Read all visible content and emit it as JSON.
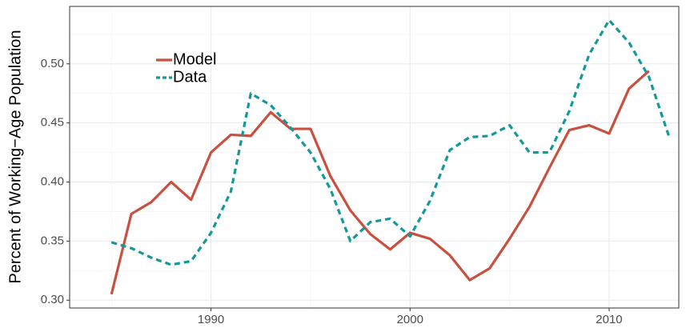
{
  "chart_data": {
    "type": "line",
    "y_label": "Percent of Working−Age Population",
    "x": [
      1985,
      1986,
      1987,
      1988,
      1989,
      1990,
      1991,
      1992,
      1993,
      1994,
      1995,
      1996,
      1997,
      1998,
      1999,
      2000,
      2001,
      2002,
      2003,
      2004,
      2005,
      2006,
      2007,
      2008,
      2009,
      2010,
      2011,
      2012,
      2013
    ],
    "series": [
      {
        "name": "Model",
        "color": "#c9503f",
        "dash": false,
        "values": [
          0.305,
          0.373,
          0.383,
          0.4,
          0.385,
          0.425,
          0.44,
          0.439,
          0.459,
          0.445,
          0.445,
          0.405,
          0.376,
          0.356,
          0.343,
          0.357,
          0.352,
          0.338,
          0.317,
          0.327,
          0.352,
          0.379,
          0.412,
          0.444,
          0.448,
          0.441,
          0.479,
          0.494,
          null
        ]
      },
      {
        "name": "Data",
        "color": "#13999a",
        "dash": true,
        "values": [
          0.349,
          0.344,
          0.336,
          0.33,
          0.333,
          0.357,
          0.392,
          0.475,
          0.465,
          0.446,
          0.425,
          0.394,
          0.35,
          0.366,
          0.369,
          0.354,
          0.384,
          0.427,
          0.438,
          0.439,
          0.448,
          0.425,
          0.425,
          0.46,
          0.508,
          0.537,
          0.518,
          0.489,
          0.439
        ]
      }
    ],
    "xlim": [
      1982.9,
      2013.5
    ],
    "xticks": [
      1990,
      2000,
      2010
    ],
    "ylim": [
      0.2934,
      0.5486
    ],
    "yticks": [
      {
        "value": 0.3,
        "label": "0.30"
      },
      {
        "value": 0.35,
        "label": "0.35"
      },
      {
        "value": 0.4,
        "label": "0.40"
      },
      {
        "value": 0.45,
        "label": "0.45"
      },
      {
        "value": 0.5,
        "label": "0.50"
      }
    ],
    "grid": true,
    "legend_position": "top-left"
  }
}
